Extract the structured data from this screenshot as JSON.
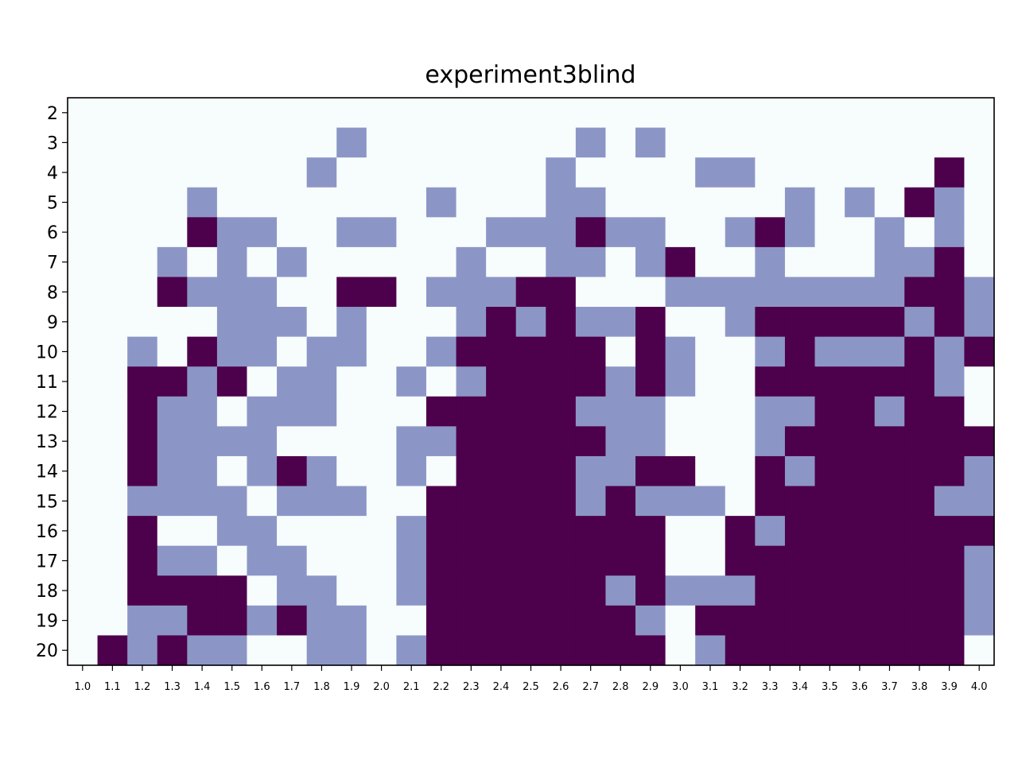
{
  "chart_data": {
    "type": "heatmap",
    "title": "experiment3blind",
    "x_labels": [
      "1.0",
      "1.1",
      "1.2",
      "1.3",
      "1.4",
      "1.5",
      "1.6",
      "1.7",
      "1.8",
      "1.9",
      "2.0",
      "2.1",
      "2.2",
      "2.3",
      "2.4",
      "2.5",
      "2.6",
      "2.7",
      "2.8",
      "2.9",
      "3.0",
      "3.1",
      "3.2",
      "3.3",
      "3.4",
      "3.5",
      "3.6",
      "3.7",
      "3.8",
      "3.9",
      "4.0"
    ],
    "y_labels": [
      "2",
      "3",
      "4",
      "5",
      "6",
      "7",
      "8",
      "9",
      "10",
      "11",
      "12",
      "13",
      "14",
      "15",
      "16",
      "17",
      "18",
      "19",
      "20"
    ],
    "value_range": [
      0,
      2
    ],
    "colors": {
      "0": "#f7fcfd",
      "1": "#8c96c6",
      "2": "#4d004b"
    },
    "grid": false,
    "rows": [
      [
        0,
        0,
        0,
        0,
        0,
        0,
        0,
        0,
        0,
        0,
        0,
        0,
        0,
        0,
        0,
        0,
        0,
        0,
        0,
        0,
        0,
        0,
        0,
        0,
        0,
        0,
        0,
        0,
        0,
        0,
        0
      ],
      [
        0,
        0,
        0,
        0,
        0,
        0,
        0,
        0,
        0,
        1,
        0,
        0,
        0,
        0,
        0,
        0,
        0,
        1,
        0,
        1,
        0,
        0,
        0,
        0,
        0,
        0,
        0,
        0,
        0,
        0,
        0
      ],
      [
        0,
        0,
        0,
        0,
        0,
        0,
        0,
        0,
        1,
        0,
        0,
        0,
        0,
        0,
        0,
        0,
        1,
        0,
        0,
        0,
        0,
        1,
        1,
        0,
        0,
        0,
        0,
        0,
        0,
        2,
        0
      ],
      [
        0,
        0,
        0,
        0,
        1,
        0,
        0,
        0,
        0,
        0,
        0,
        0,
        1,
        0,
        0,
        0,
        1,
        1,
        0,
        0,
        0,
        0,
        0,
        0,
        1,
        0,
        1,
        0,
        2,
        1,
        0
      ],
      [
        0,
        0,
        0,
        0,
        2,
        1,
        1,
        0,
        0,
        1,
        1,
        0,
        0,
        0,
        1,
        1,
        1,
        2,
        1,
        1,
        0,
        0,
        1,
        2,
        1,
        0,
        0,
        1,
        0,
        1,
        0
      ],
      [
        0,
        0,
        0,
        1,
        0,
        1,
        0,
        1,
        0,
        0,
        0,
        0,
        0,
        1,
        0,
        0,
        1,
        1,
        0,
        1,
        2,
        0,
        0,
        1,
        0,
        0,
        0,
        1,
        1,
        2,
        0
      ],
      [
        0,
        0,
        0,
        2,
        1,
        1,
        1,
        0,
        0,
        2,
        2,
        0,
        1,
        1,
        1,
        2,
        2,
        0,
        0,
        0,
        1,
        1,
        1,
        1,
        1,
        1,
        1,
        1,
        2,
        2,
        1
      ],
      [
        0,
        0,
        0,
        0,
        0,
        1,
        1,
        1,
        0,
        1,
        0,
        0,
        0,
        1,
        2,
        1,
        2,
        1,
        1,
        2,
        0,
        0,
        1,
        2,
        2,
        2,
        2,
        2,
        1,
        2,
        1
      ],
      [
        0,
        0,
        1,
        0,
        2,
        1,
        1,
        0,
        1,
        1,
        0,
        0,
        1,
        2,
        2,
        2,
        2,
        2,
        0,
        2,
        1,
        0,
        0,
        1,
        2,
        1,
        1,
        1,
        2,
        1,
        2
      ],
      [
        0,
        0,
        2,
        2,
        1,
        2,
        0,
        1,
        1,
        0,
        0,
        1,
        0,
        1,
        2,
        2,
        2,
        2,
        1,
        2,
        1,
        0,
        0,
        2,
        2,
        2,
        2,
        2,
        2,
        1,
        0
      ],
      [
        0,
        0,
        2,
        1,
        1,
        0,
        1,
        1,
        1,
        0,
        0,
        0,
        2,
        2,
        2,
        2,
        2,
        1,
        1,
        1,
        0,
        0,
        0,
        1,
        1,
        2,
        2,
        1,
        2,
        2,
        0
      ],
      [
        0,
        0,
        2,
        1,
        1,
        1,
        1,
        0,
        0,
        0,
        0,
        1,
        1,
        2,
        2,
        2,
        2,
        2,
        1,
        1,
        0,
        0,
        0,
        1,
        2,
        2,
        2,
        2,
        2,
        2,
        2
      ],
      [
        0,
        0,
        2,
        1,
        1,
        0,
        1,
        2,
        1,
        0,
        0,
        1,
        0,
        2,
        2,
        2,
        2,
        1,
        1,
        2,
        2,
        0,
        0,
        2,
        1,
        2,
        2,
        2,
        2,
        2,
        1
      ],
      [
        0,
        0,
        1,
        1,
        1,
        1,
        0,
        1,
        1,
        1,
        0,
        0,
        2,
        2,
        2,
        2,
        2,
        1,
        2,
        1,
        1,
        1,
        0,
        2,
        2,
        2,
        2,
        2,
        2,
        1,
        1
      ],
      [
        0,
        0,
        2,
        0,
        0,
        1,
        1,
        0,
        0,
        0,
        0,
        1,
        2,
        2,
        2,
        2,
        2,
        2,
        2,
        2,
        0,
        0,
        2,
        1,
        2,
        2,
        2,
        2,
        2,
        2,
        2
      ],
      [
        0,
        0,
        2,
        1,
        1,
        0,
        1,
        1,
        0,
        0,
        0,
        1,
        2,
        2,
        2,
        2,
        2,
        2,
        2,
        2,
        0,
        0,
        2,
        2,
        2,
        2,
        2,
        2,
        2,
        2,
        1
      ],
      [
        0,
        0,
        2,
        2,
        2,
        2,
        0,
        1,
        1,
        0,
        0,
        1,
        2,
        2,
        2,
        2,
        2,
        2,
        1,
        2,
        1,
        1,
        1,
        2,
        2,
        2,
        2,
        2,
        2,
        2,
        1
      ],
      [
        0,
        0,
        1,
        1,
        2,
        2,
        1,
        2,
        1,
        1,
        0,
        0,
        2,
        2,
        2,
        2,
        2,
        2,
        2,
        1,
        0,
        2,
        2,
        2,
        2,
        2,
        2,
        2,
        2,
        2,
        1
      ],
      [
        0,
        2,
        1,
        2,
        1,
        1,
        0,
        0,
        1,
        1,
        0,
        1,
        2,
        2,
        2,
        2,
        2,
        2,
        2,
        2,
        0,
        1,
        2,
        2,
        2,
        2,
        2,
        2,
        2,
        2,
        0
      ]
    ]
  }
}
